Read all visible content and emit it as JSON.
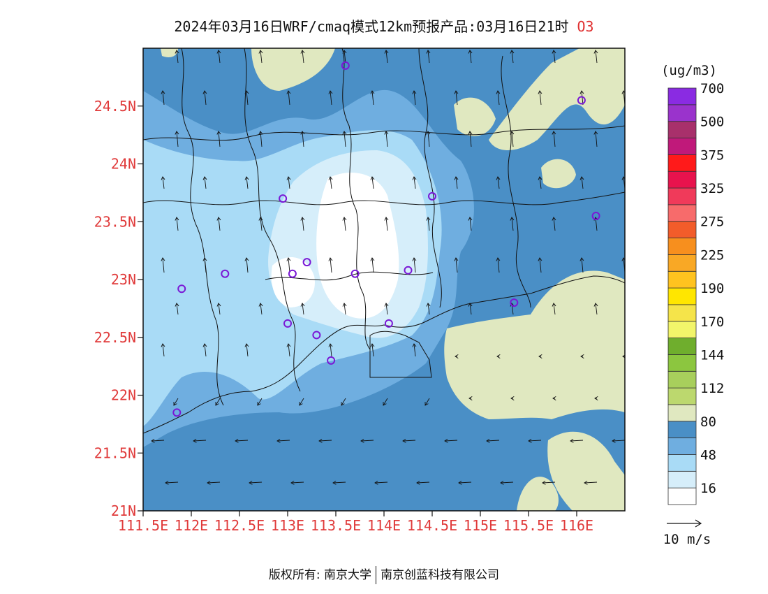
{
  "title": {
    "main": "2024年03月16日WRF/cmaq模式12km预报产品:03月16日21时",
    "species": "O3"
  },
  "axes": {
    "lat_labels": [
      "24.5N",
      "24N",
      "23.5N",
      "23N",
      "22.5N",
      "22N",
      "21.5N",
      "21N"
    ],
    "lon_labels": [
      "111.5E",
      "112E",
      "112.5E",
      "113E",
      "113.5E",
      "114E",
      "114.5E",
      "115E",
      "115.5E",
      "116E"
    ],
    "label_color": "#e03a3a"
  },
  "colorbar": {
    "unit": "(ug/m3)",
    "colors": [
      "#ffffff",
      "#d6eefa",
      "#a9dbf6",
      "#6faee0",
      "#4a8fc6",
      "#e0e8c0",
      "#bcd86e",
      "#a8cf5c",
      "#8cc63f",
      "#6fae2d",
      "#f2f56a",
      "#f5e44a",
      "#ffe600",
      "#ffc31f",
      "#f9a825",
      "#f78f1e",
      "#f25c2a",
      "#f76b6b",
      "#f03a5a",
      "#e8134d",
      "#ff1a1a",
      "#c0197a",
      "#a8306b",
      "#9a33cc",
      "#8a2be2"
    ],
    "labels": [
      "16",
      "48",
      "80",
      "112",
      "144",
      "170",
      "190",
      "225",
      "275",
      "325",
      "375",
      "500",
      "700"
    ]
  },
  "wind_legend": {
    "label": "10 m/s"
  },
  "stations": [
    {
      "lon": 113.6,
      "lat": 24.85
    },
    {
      "lon": 116.05,
      "lat": 24.55
    },
    {
      "lon": 112.95,
      "lat": 23.7
    },
    {
      "lon": 114.5,
      "lat": 23.72
    },
    {
      "lon": 116.2,
      "lat": 23.55
    },
    {
      "lon": 113.2,
      "lat": 23.15
    },
    {
      "lon": 112.35,
      "lat": 23.05
    },
    {
      "lon": 113.05,
      "lat": 23.05
    },
    {
      "lon": 113.7,
      "lat": 23.05
    },
    {
      "lon": 114.25,
      "lat": 23.08
    },
    {
      "lon": 111.9,
      "lat": 22.92
    },
    {
      "lon": 115.35,
      "lat": 22.8
    },
    {
      "lon": 113.0,
      "lat": 22.62
    },
    {
      "lon": 113.3,
      "lat": 22.52
    },
    {
      "lon": 114.05,
      "lat": 22.62
    },
    {
      "lon": 113.45,
      "lat": 22.3
    },
    {
      "lon": 111.85,
      "lat": 21.85
    }
  ],
  "footer": {
    "copyright": "版权所有: 南京大学",
    "company": "南京创蓝科技有限公司"
  }
}
